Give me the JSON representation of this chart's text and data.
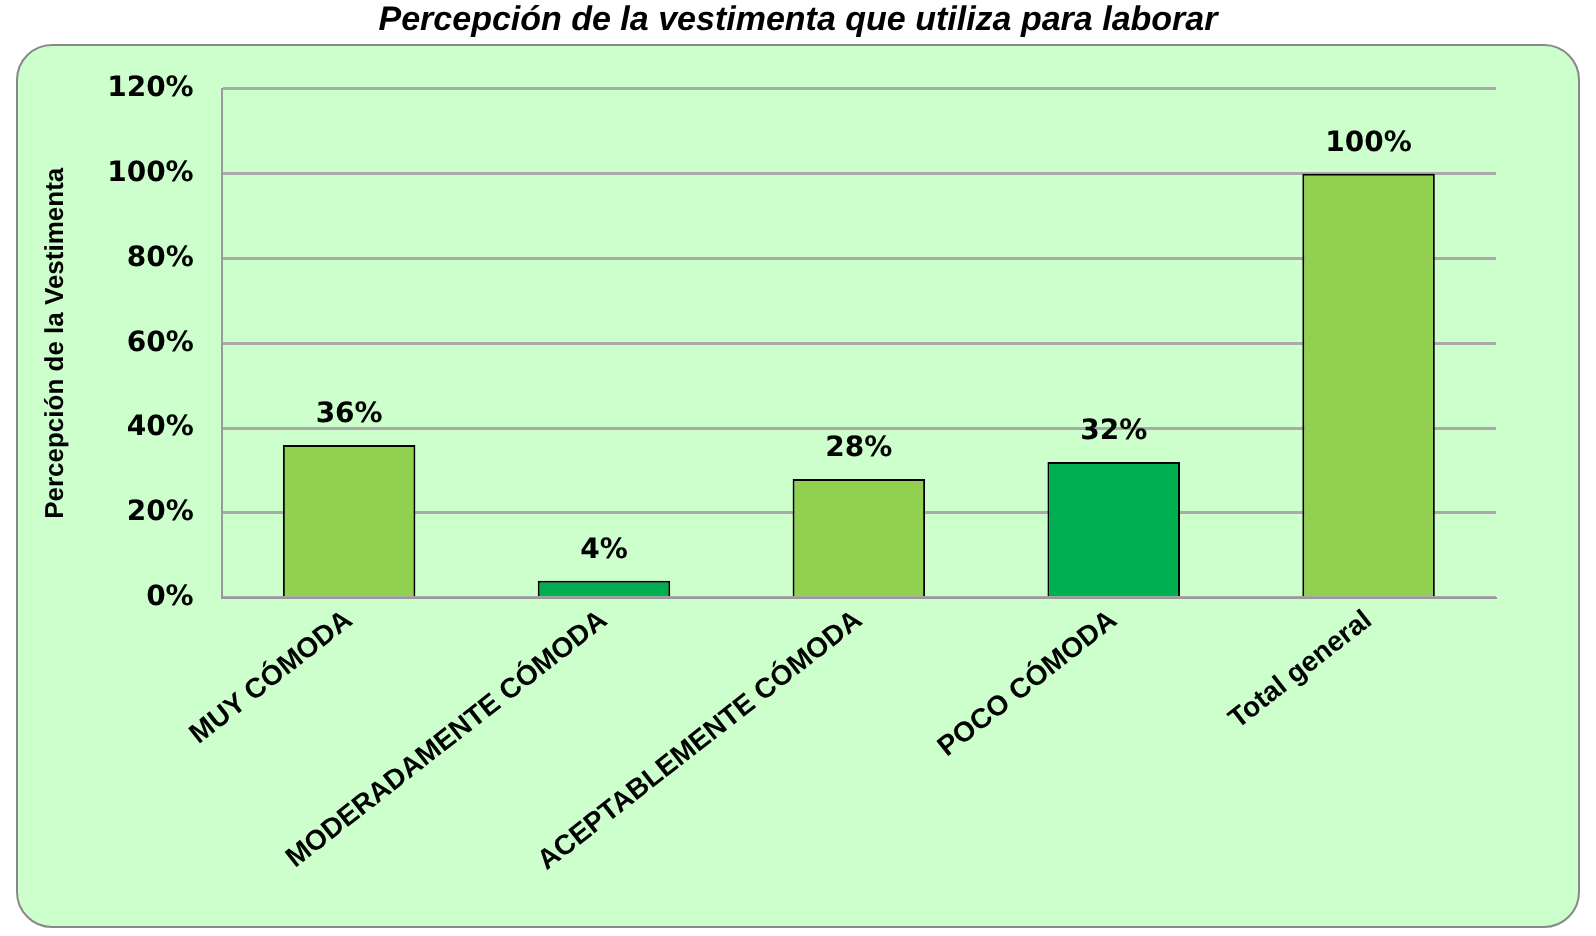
{
  "chart_data": {
    "type": "bar",
    "title": "Percepción de la vestimenta que utiliza para laborar",
    "ylabel": "Percepción de la Vestimenta",
    "categories": [
      "MUY CÓMODA",
      "MODERADAMENTE CÓMODA",
      "ACEPTABLEMENTE CÓMODA",
      "POCO CÓMODA",
      "Total general"
    ],
    "values": [
      36,
      4,
      28,
      32,
      100
    ],
    "colors": [
      "#92d050",
      "#00b050",
      "#92d050",
      "#00b050",
      "#92d050"
    ],
    "value_labels": [
      "36%",
      "4%",
      "28%",
      "32%",
      "100%"
    ],
    "ylim": [
      0,
      120
    ],
    "yticks": [
      {
        "value": 0,
        "label": "0%"
      },
      {
        "value": 20,
        "label": "20%"
      },
      {
        "value": 40,
        "label": "40%"
      },
      {
        "value": 60,
        "label": "60%"
      },
      {
        "value": 80,
        "label": "80%"
      },
      {
        "value": 100,
        "label": "100%"
      },
      {
        "value": 120,
        "label": "120%"
      }
    ],
    "grid": "y",
    "legend": false
  }
}
